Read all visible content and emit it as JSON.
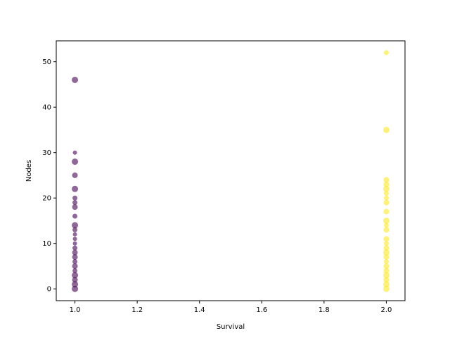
{
  "chart_data": {
    "type": "scatter",
    "title": "",
    "xlabel": "Survival",
    "ylabel": "Nodes",
    "xlim": [
      0.94,
      2.06
    ],
    "ylim": [
      -2.6,
      54.6
    ],
    "grid": false,
    "x_ticks": [
      "1.0",
      "1.2",
      "1.4",
      "1.6",
      "1.8",
      "2.0"
    ],
    "y_ticks": [
      "0",
      "10",
      "20",
      "30",
      "40",
      "50"
    ],
    "colors": {
      "survival_1": "#440154",
      "survival_2": "#fde725"
    },
    "series": [
      {
        "x": 1.0,
        "color": "#440154",
        "points": [
          {
            "y": 46,
            "size": 9
          },
          {
            "y": 30,
            "size": 6
          },
          {
            "y": 28,
            "size": 9
          },
          {
            "y": 25,
            "size": 8
          },
          {
            "y": 22,
            "size": 9
          },
          {
            "y": 20,
            "size": 7
          },
          {
            "y": 19,
            "size": 7
          },
          {
            "y": 18,
            "size": 8
          },
          {
            "y": 16,
            "size": 7
          },
          {
            "y": 14,
            "size": 9
          },
          {
            "y": 13,
            "size": 7
          },
          {
            "y": 12,
            "size": 6
          },
          {
            "y": 11,
            "size": 6
          },
          {
            "y": 10,
            "size": 6
          },
          {
            "y": 9,
            "size": 7
          },
          {
            "y": 8,
            "size": 8
          },
          {
            "y": 7,
            "size": 8
          },
          {
            "y": 6,
            "size": 7
          },
          {
            "y": 5,
            "size": 8
          },
          {
            "y": 4,
            "size": 7
          },
          {
            "y": 3,
            "size": 9
          },
          {
            "y": 2,
            "size": 8
          },
          {
            "y": 1,
            "size": 9
          },
          {
            "y": 0,
            "size": 9
          }
        ]
      },
      {
        "x": 2.0,
        "color": "#fde725",
        "points": [
          {
            "y": 52,
            "size": 7
          },
          {
            "y": 35,
            "size": 9
          },
          {
            "y": 24,
            "size": 8
          },
          {
            "y": 23,
            "size": 8
          },
          {
            "y": 22,
            "size": 9
          },
          {
            "y": 21,
            "size": 7
          },
          {
            "y": 20,
            "size": 7
          },
          {
            "y": 19,
            "size": 8
          },
          {
            "y": 17,
            "size": 8
          },
          {
            "y": 15,
            "size": 9
          },
          {
            "y": 14,
            "size": 7
          },
          {
            "y": 13,
            "size": 8
          },
          {
            "y": 11,
            "size": 8
          },
          {
            "y": 10,
            "size": 7
          },
          {
            "y": 9,
            "size": 8
          },
          {
            "y": 8,
            "size": 9
          },
          {
            "y": 7,
            "size": 8
          },
          {
            "y": 6,
            "size": 7
          },
          {
            "y": 5,
            "size": 8
          },
          {
            "y": 4,
            "size": 8
          },
          {
            "y": 3,
            "size": 9
          },
          {
            "y": 2,
            "size": 8
          },
          {
            "y": 1,
            "size": 9
          },
          {
            "y": 0,
            "size": 9
          }
        ]
      }
    ]
  }
}
